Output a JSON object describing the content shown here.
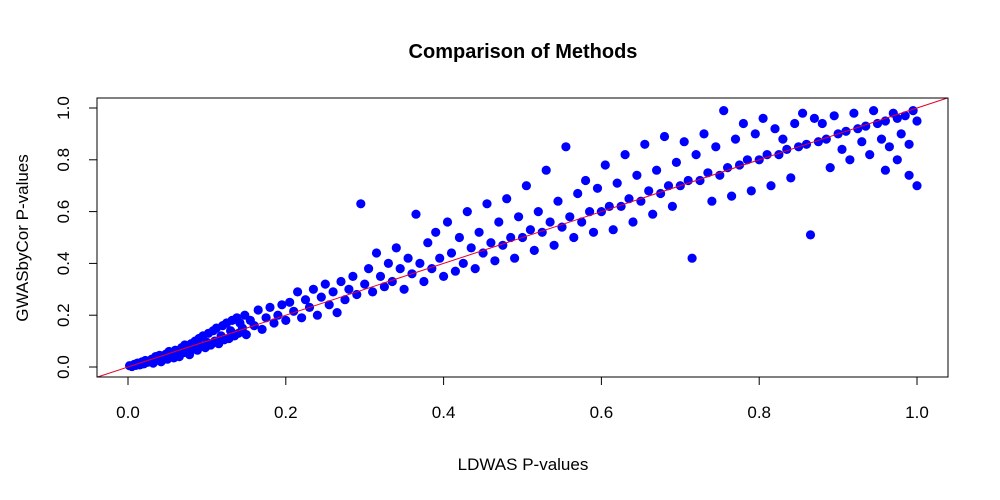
{
  "chart_data": {
    "type": "scatter",
    "title": "Comparison of Methods",
    "xlabel": "LDWAS P-values",
    "ylabel": "GWASbyCor P-values",
    "xlim": [
      0,
      1
    ],
    "ylim": [
      0,
      1
    ],
    "x_ticks": [
      "0.0",
      "0.2",
      "0.4",
      "0.6",
      "0.8",
      "1.0"
    ],
    "y_ticks": [
      "0.0",
      "0.2",
      "0.4",
      "0.6",
      "0.8",
      "1.0"
    ],
    "grid": false,
    "reference_line": {
      "slope": 1,
      "intercept": 0,
      "color": "#e8002a"
    },
    "point_color": "#0000ff",
    "series": [
      {
        "points": [
          [
            0.002,
            0.005
          ],
          [
            0.005,
            0.002
          ],
          [
            0.008,
            0.01
          ],
          [
            0.01,
            0.006
          ],
          [
            0.012,
            0.015
          ],
          [
            0.015,
            0.008
          ],
          [
            0.018,
            0.02
          ],
          [
            0.02,
            0.012
          ],
          [
            0.022,
            0.025
          ],
          [
            0.025,
            0.018
          ],
          [
            0.028,
            0.022
          ],
          [
            0.03,
            0.03
          ],
          [
            0.032,
            0.015
          ],
          [
            0.035,
            0.04
          ],
          [
            0.038,
            0.028
          ],
          [
            0.04,
            0.045
          ],
          [
            0.042,
            0.02
          ],
          [
            0.045,
            0.038
          ],
          [
            0.048,
            0.05
          ],
          [
            0.05,
            0.03
          ],
          [
            0.052,
            0.06
          ],
          [
            0.055,
            0.045
          ],
          [
            0.058,
            0.035
          ],
          [
            0.06,
            0.065
          ],
          [
            0.062,
            0.05
          ],
          [
            0.065,
            0.04
          ],
          [
            0.068,
            0.075
          ],
          [
            0.07,
            0.055
          ],
          [
            0.072,
            0.085
          ],
          [
            0.075,
            0.06
          ],
          [
            0.078,
            0.048
          ],
          [
            0.08,
            0.09
          ],
          [
            0.082,
            0.07
          ],
          [
            0.085,
            0.1
          ],
          [
            0.088,
            0.065
          ],
          [
            0.09,
            0.11
          ],
          [
            0.092,
            0.08
          ],
          [
            0.095,
            0.12
          ],
          [
            0.098,
            0.075
          ],
          [
            0.1,
            0.095
          ],
          [
            0.102,
            0.13
          ],
          [
            0.105,
            0.085
          ],
          [
            0.108,
            0.14
          ],
          [
            0.11,
            0.1
          ],
          [
            0.112,
            0.15
          ],
          [
            0.115,
            0.09
          ],
          [
            0.118,
            0.12
          ],
          [
            0.12,
            0.16
          ],
          [
            0.122,
            0.105
          ],
          [
            0.125,
            0.17
          ],
          [
            0.128,
            0.11
          ],
          [
            0.13,
            0.14
          ],
          [
            0.132,
            0.18
          ],
          [
            0.135,
            0.12
          ],
          [
            0.138,
            0.19
          ],
          [
            0.14,
            0.13
          ],
          [
            0.142,
            0.17
          ],
          [
            0.145,
            0.15
          ],
          [
            0.148,
            0.2
          ],
          [
            0.15,
            0.125
          ],
          [
            0.155,
            0.18
          ],
          [
            0.16,
            0.16
          ],
          [
            0.165,
            0.22
          ],
          [
            0.17,
            0.145
          ],
          [
            0.175,
            0.19
          ],
          [
            0.18,
            0.23
          ],
          [
            0.185,
            0.17
          ],
          [
            0.19,
            0.2
          ],
          [
            0.195,
            0.24
          ],
          [
            0.2,
            0.18
          ],
          [
            0.205,
            0.25
          ],
          [
            0.21,
            0.215
          ],
          [
            0.215,
            0.29
          ],
          [
            0.22,
            0.19
          ],
          [
            0.225,
            0.26
          ],
          [
            0.23,
            0.23
          ],
          [
            0.235,
            0.3
          ],
          [
            0.24,
            0.2
          ],
          [
            0.245,
            0.27
          ],
          [
            0.25,
            0.32
          ],
          [
            0.255,
            0.24
          ],
          [
            0.26,
            0.29
          ],
          [
            0.265,
            0.21
          ],
          [
            0.27,
            0.33
          ],
          [
            0.275,
            0.26
          ],
          [
            0.28,
            0.3
          ],
          [
            0.285,
            0.35
          ],
          [
            0.29,
            0.28
          ],
          [
            0.295,
            0.63
          ],
          [
            0.3,
            0.32
          ],
          [
            0.305,
            0.38
          ],
          [
            0.31,
            0.29
          ],
          [
            0.315,
            0.44
          ],
          [
            0.32,
            0.35
          ],
          [
            0.325,
            0.31
          ],
          [
            0.33,
            0.4
          ],
          [
            0.335,
            0.33
          ],
          [
            0.34,
            0.46
          ],
          [
            0.345,
            0.38
          ],
          [
            0.35,
            0.3
          ],
          [
            0.355,
            0.42
          ],
          [
            0.36,
            0.36
          ],
          [
            0.365,
            0.59
          ],
          [
            0.37,
            0.4
          ],
          [
            0.375,
            0.33
          ],
          [
            0.38,
            0.48
          ],
          [
            0.385,
            0.38
          ],
          [
            0.39,
            0.52
          ],
          [
            0.395,
            0.42
          ],
          [
            0.4,
            0.35
          ],
          [
            0.405,
            0.56
          ],
          [
            0.41,
            0.44
          ],
          [
            0.415,
            0.37
          ],
          [
            0.42,
            0.5
          ],
          [
            0.425,
            0.4
          ],
          [
            0.43,
            0.6
          ],
          [
            0.435,
            0.46
          ],
          [
            0.44,
            0.38
          ],
          [
            0.445,
            0.52
          ],
          [
            0.45,
            0.44
          ],
          [
            0.455,
            0.63
          ],
          [
            0.46,
            0.48
          ],
          [
            0.465,
            0.41
          ],
          [
            0.47,
            0.56
          ],
          [
            0.475,
            0.47
          ],
          [
            0.48,
            0.65
          ],
          [
            0.485,
            0.5
          ],
          [
            0.49,
            0.42
          ],
          [
            0.495,
            0.58
          ],
          [
            0.5,
            0.5
          ],
          [
            0.505,
            0.7
          ],
          [
            0.51,
            0.53
          ],
          [
            0.515,
            0.45
          ],
          [
            0.52,
            0.6
          ],
          [
            0.525,
            0.52
          ],
          [
            0.53,
            0.76
          ],
          [
            0.535,
            0.56
          ],
          [
            0.54,
            0.47
          ],
          [
            0.545,
            0.64
          ],
          [
            0.55,
            0.54
          ],
          [
            0.555,
            0.85
          ],
          [
            0.56,
            0.58
          ],
          [
            0.565,
            0.5
          ],
          [
            0.57,
            0.67
          ],
          [
            0.575,
            0.56
          ],
          [
            0.58,
            0.72
          ],
          [
            0.585,
            0.6
          ],
          [
            0.59,
            0.52
          ],
          [
            0.595,
            0.69
          ],
          [
            0.6,
            0.6
          ],
          [
            0.605,
            0.78
          ],
          [
            0.61,
            0.62
          ],
          [
            0.615,
            0.53
          ],
          [
            0.62,
            0.71
          ],
          [
            0.625,
            0.62
          ],
          [
            0.63,
            0.82
          ],
          [
            0.635,
            0.65
          ],
          [
            0.64,
            0.56
          ],
          [
            0.645,
            0.74
          ],
          [
            0.65,
            0.64
          ],
          [
            0.655,
            0.86
          ],
          [
            0.66,
            0.68
          ],
          [
            0.665,
            0.59
          ],
          [
            0.67,
            0.76
          ],
          [
            0.675,
            0.67
          ],
          [
            0.68,
            0.89
          ],
          [
            0.685,
            0.7
          ],
          [
            0.69,
            0.62
          ],
          [
            0.695,
            0.79
          ],
          [
            0.7,
            0.7
          ],
          [
            0.705,
            0.87
          ],
          [
            0.71,
            0.72
          ],
          [
            0.715,
            0.42
          ],
          [
            0.72,
            0.82
          ],
          [
            0.725,
            0.72
          ],
          [
            0.73,
            0.9
          ],
          [
            0.735,
            0.75
          ],
          [
            0.74,
            0.64
          ],
          [
            0.745,
            0.85
          ],
          [
            0.75,
            0.74
          ],
          [
            0.755,
            0.99
          ],
          [
            0.76,
            0.77
          ],
          [
            0.765,
            0.66
          ],
          [
            0.77,
            0.88
          ],
          [
            0.775,
            0.78
          ],
          [
            0.78,
            0.94
          ],
          [
            0.785,
            0.8
          ],
          [
            0.79,
            0.68
          ],
          [
            0.795,
            0.9
          ],
          [
            0.8,
            0.8
          ],
          [
            0.805,
            0.96
          ],
          [
            0.81,
            0.82
          ],
          [
            0.815,
            0.7
          ],
          [
            0.82,
            0.92
          ],
          [
            0.825,
            0.82
          ],
          [
            0.83,
            0.88
          ],
          [
            0.835,
            0.84
          ],
          [
            0.84,
            0.73
          ],
          [
            0.845,
            0.94
          ],
          [
            0.85,
            0.85
          ],
          [
            0.855,
            0.98
          ],
          [
            0.86,
            0.86
          ],
          [
            0.865,
            0.51
          ],
          [
            0.87,
            0.96
          ],
          [
            0.875,
            0.87
          ],
          [
            0.88,
            0.94
          ],
          [
            0.885,
            0.88
          ],
          [
            0.89,
            0.77
          ],
          [
            0.895,
            0.97
          ],
          [
            0.9,
            0.9
          ],
          [
            0.905,
            0.84
          ],
          [
            0.91,
            0.91
          ],
          [
            0.915,
            0.8
          ],
          [
            0.92,
            0.98
          ],
          [
            0.925,
            0.92
          ],
          [
            0.93,
            0.87
          ],
          [
            0.935,
            0.93
          ],
          [
            0.94,
            0.82
          ],
          [
            0.945,
            0.99
          ],
          [
            0.95,
            0.94
          ],
          [
            0.955,
            0.88
          ],
          [
            0.96,
            0.95
          ],
          [
            0.965,
            0.85
          ],
          [
            0.97,
            0.98
          ],
          [
            0.975,
            0.96
          ],
          [
            0.98,
            0.9
          ],
          [
            0.985,
            0.97
          ],
          [
            0.99,
            0.74
          ],
          [
            0.995,
            0.99
          ],
          [
            1.0,
            0.7
          ],
          [
            1.0,
            0.95
          ],
          [
            0.99,
            0.86
          ],
          [
            0.975,
            0.8
          ],
          [
            0.96,
            0.76
          ]
        ]
      }
    ]
  }
}
